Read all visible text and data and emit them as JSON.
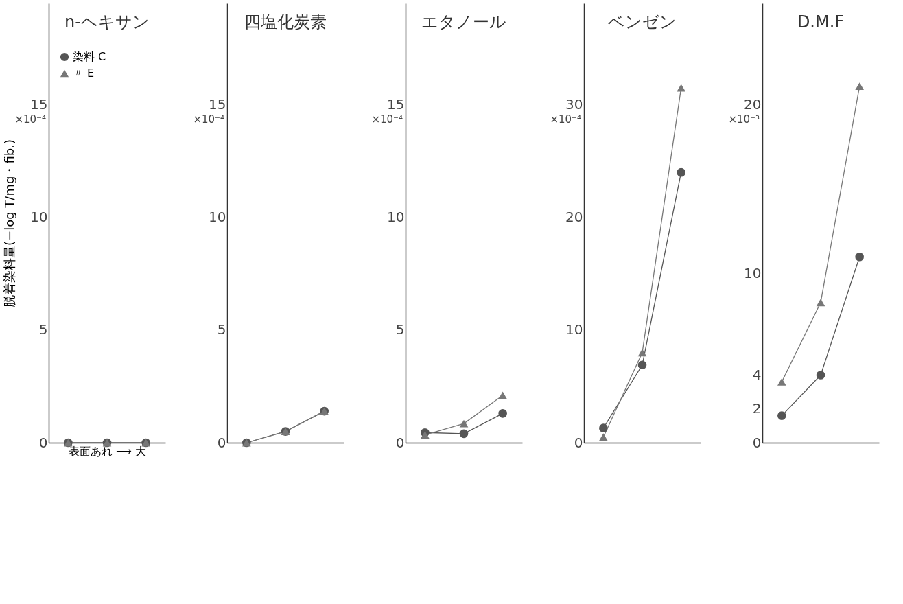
{
  "chart_data": [
    {
      "type": "line",
      "title": "n-ヘキサン",
      "ylabel": "脱着染料量(−log T/mg・fib.)",
      "xlabel": "表面あれ ⟶ 大",
      "categories": [
        null,
        null,
        null
      ],
      "ylim": [
        0,
        19.5
      ],
      "yticks": [
        0,
        5,
        10,
        15
      ],
      "annotations": [
        "×10⁻⁴"
      ],
      "tick_labels": "y",
      "grid": false,
      "legend": "top left",
      "series": [
        {
          "name": "染料 C",
          "color": "#555555",
          "marker": "circle",
          "values": [
            0,
            0,
            0
          ]
        },
        {
          "name": "〃 E",
          "color": "#777777",
          "marker": "triangle",
          "values": [
            0,
            0,
            0
          ]
        }
      ]
    },
    {
      "type": "line",
      "title": "四塩化炭素",
      "categories": [
        null,
        null,
        null
      ],
      "ylim": [
        0,
        19.5
      ],
      "yticks": [
        0,
        5,
        10,
        15
      ],
      "annotations": [
        "×10⁻⁴"
      ],
      "tick_labels": "y",
      "grid": false,
      "legend": false,
      "series": [
        {
          "color": "#555555",
          "marker": "circle",
          "values": [
            0,
            0.5,
            1.4
          ]
        },
        {
          "color": "#777777",
          "marker": "triangle",
          "values": [
            0,
            0.5,
            1.4
          ]
        }
      ]
    },
    {
      "type": "line",
      "title": "エタノール",
      "categories": [
        null,
        null,
        null
      ],
      "ylim": [
        0,
        19.5
      ],
      "yticks": [
        0,
        5,
        10,
        15
      ],
      "annotations": [
        "×10⁻⁴"
      ],
      "tick_labels": "y",
      "grid": false,
      "legend": false,
      "series": [
        {
          "color": "#555555",
          "marker": "circle",
          "values": [
            0.45,
            0.4,
            1.3
          ]
        },
        {
          "color": "#777777",
          "marker": "triangle",
          "values": [
            0.35,
            0.85,
            2.1
          ]
        }
      ]
    },
    {
      "type": "line",
      "title": "ベンゼン",
      "categories": [
        null,
        null,
        null
      ],
      "ylim": [
        0,
        39
      ],
      "yticks": [
        0,
        10,
        20,
        30
      ],
      "annotations": [
        "×10⁻⁴"
      ],
      "tick_labels": "y",
      "grid": false,
      "legend": false,
      "series": [
        {
          "color": "#555555",
          "marker": "circle",
          "values": [
            1.3,
            6.9,
            24
          ]
        },
        {
          "color": "#777777",
          "marker": "triangle",
          "values": [
            0.5,
            8,
            31.5
          ]
        }
      ]
    },
    {
      "type": "line",
      "title": "D.M.F",
      "categories": [
        null,
        null,
        null
      ],
      "ylim": [
        0,
        26
      ],
      "yticks": [
        0,
        2,
        4,
        10,
        20
      ],
      "annotations": [
        "×10⁻³"
      ],
      "tick_labels": "y",
      "grid": false,
      "legend": false,
      "series": [
        {
          "color": "#555555",
          "marker": "circle",
          "values": [
            1.6,
            4,
            11
          ]
        },
        {
          "color": "#777777",
          "marker": "triangle",
          "values": [
            3.6,
            8.3,
            21.1
          ]
        }
      ]
    }
  ]
}
